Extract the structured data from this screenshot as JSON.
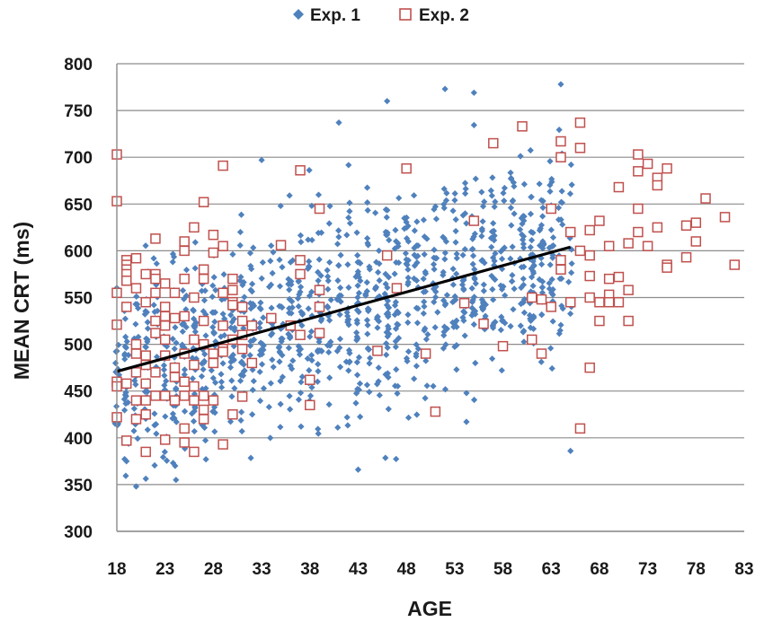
{
  "chart_data": {
    "type": "scatter",
    "title": "",
    "xlabel": "AGE",
    "ylabel": "MEAN CRT (ms)",
    "xlim": [
      18,
      83
    ],
    "ylim": [
      300,
      800
    ],
    "xticks": [
      18,
      23,
      28,
      33,
      38,
      43,
      48,
      53,
      58,
      63,
      68,
      73,
      78,
      83
    ],
    "yticks": [
      300,
      350,
      400,
      450,
      500,
      550,
      600,
      650,
      700,
      750,
      800
    ],
    "grid": "horizontal",
    "legend_position": "top-center",
    "series": [
      {
        "name": "Exp. 1",
        "marker": "diamond-filled",
        "color": "#4F81BD",
        "generated": {
          "x_min": 18,
          "x_max": 65,
          "count": 1150,
          "trend_intercept": 471,
          "trend_slope": 2.83,
          "spread": 55
        },
        "points": [
          [
            20,
            348
          ],
          [
            43,
            366
          ],
          [
            52,
            773
          ],
          [
            55,
            769
          ],
          [
            64,
            778
          ],
          [
            46,
            760
          ],
          [
            41,
            737
          ],
          [
            33,
            697
          ],
          [
            19,
            375
          ],
          [
            65,
            386
          ]
        ]
      },
      {
        "name": "Exp. 2",
        "marker": "square-open",
        "color": "#C0504D",
        "points": [
          [
            18,
            703
          ],
          [
            18,
            653
          ],
          [
            18,
            555
          ],
          [
            18,
            521
          ],
          [
            18,
            460
          ],
          [
            18,
            455
          ],
          [
            18,
            422
          ],
          [
            19,
            590
          ],
          [
            19,
            585
          ],
          [
            19,
            580
          ],
          [
            19,
            575
          ],
          [
            19,
            568
          ],
          [
            19,
            540
          ],
          [
            19,
            458
          ],
          [
            19,
            397
          ],
          [
            20,
            592
          ],
          [
            20,
            560
          ],
          [
            20,
            500
          ],
          [
            20,
            490
          ],
          [
            20,
            470
          ],
          [
            20,
            440
          ],
          [
            20,
            420
          ],
          [
            21,
            575
          ],
          [
            21,
            545
          ],
          [
            21,
            488
          ],
          [
            21,
            478
          ],
          [
            21,
            458
          ],
          [
            21,
            440
          ],
          [
            21,
            425
          ],
          [
            21,
            385
          ],
          [
            22,
            613
          ],
          [
            22,
            575
          ],
          [
            22,
            570
          ],
          [
            22,
            555
          ],
          [
            22,
            525
          ],
          [
            22,
            512
          ],
          [
            22,
            470
          ],
          [
            22,
            445
          ],
          [
            23,
            565
          ],
          [
            23,
            540
          ],
          [
            23,
            530
          ],
          [
            23,
            520
          ],
          [
            23,
            505
          ],
          [
            23,
            488
          ],
          [
            23,
            445
          ],
          [
            23,
            398
          ],
          [
            24,
            555
          ],
          [
            24,
            528
          ],
          [
            24,
            475
          ],
          [
            24,
            465
          ],
          [
            24,
            440
          ],
          [
            25,
            610
          ],
          [
            25,
            600
          ],
          [
            25,
            570
          ],
          [
            25,
            530
          ],
          [
            25,
            490
          ],
          [
            25,
            460
          ],
          [
            25,
            445
          ],
          [
            25,
            410
          ],
          [
            25,
            395
          ],
          [
            26,
            625
          ],
          [
            26,
            550
          ],
          [
            26,
            505
          ],
          [
            26,
            478
          ],
          [
            26,
            455
          ],
          [
            26,
            440
          ],
          [
            26,
            385
          ],
          [
            27,
            652
          ],
          [
            27,
            580
          ],
          [
            27,
            570
          ],
          [
            27,
            525
          ],
          [
            27,
            500
          ],
          [
            27,
            445
          ],
          [
            27,
            430
          ],
          [
            27,
            420
          ],
          [
            28,
            617
          ],
          [
            28,
            598
          ],
          [
            28,
            490
          ],
          [
            28,
            480
          ],
          [
            28,
            440
          ],
          [
            29,
            691
          ],
          [
            29,
            605
          ],
          [
            29,
            555
          ],
          [
            29,
            520
          ],
          [
            29,
            495
          ],
          [
            29,
            492
          ],
          [
            29,
            393
          ],
          [
            30,
            570
          ],
          [
            30,
            558
          ],
          [
            30,
            545
          ],
          [
            30,
            542
          ],
          [
            30,
            505
          ],
          [
            30,
            425
          ],
          [
            31,
            540
          ],
          [
            31,
            525
          ],
          [
            31,
            510
          ],
          [
            31,
            495
          ],
          [
            31,
            444
          ],
          [
            32,
            520
          ],
          [
            32,
            480
          ],
          [
            34,
            528
          ],
          [
            35,
            606
          ],
          [
            36,
            520
          ],
          [
            37,
            686
          ],
          [
            37,
            590
          ],
          [
            37,
            575
          ],
          [
            37,
            510
          ],
          [
            38,
            462
          ],
          [
            38,
            435
          ],
          [
            39,
            645
          ],
          [
            39,
            558
          ],
          [
            39,
            540
          ],
          [
            39,
            512
          ],
          [
            45,
            493
          ],
          [
            46,
            595
          ],
          [
            47,
            560
          ],
          [
            48,
            688
          ],
          [
            50,
            490
          ],
          [
            51,
            428
          ],
          [
            54,
            544
          ],
          [
            55,
            632
          ],
          [
            56,
            522
          ],
          [
            57,
            715
          ],
          [
            58,
            498
          ],
          [
            60,
            733
          ],
          [
            61,
            550
          ],
          [
            61,
            505
          ],
          [
            62,
            548
          ],
          [
            62,
            490
          ],
          [
            63,
            645
          ],
          [
            63,
            540
          ],
          [
            64,
            717
          ],
          [
            64,
            700
          ],
          [
            64,
            590
          ],
          [
            64,
            580
          ],
          [
            65,
            620
          ],
          [
            65,
            545
          ],
          [
            66,
            737
          ],
          [
            66,
            710
          ],
          [
            66,
            600
          ],
          [
            66,
            410
          ],
          [
            67,
            622
          ],
          [
            67,
            595
          ],
          [
            67,
            573
          ],
          [
            67,
            550
          ],
          [
            67,
            475
          ],
          [
            68,
            632
          ],
          [
            68,
            545
          ],
          [
            68,
            525
          ],
          [
            69,
            605
          ],
          [
            69,
            570
          ],
          [
            69,
            553
          ],
          [
            69,
            545
          ],
          [
            70,
            668
          ],
          [
            70,
            572
          ],
          [
            70,
            545
          ],
          [
            71,
            608
          ],
          [
            71,
            558
          ],
          [
            71,
            525
          ],
          [
            72,
            703
          ],
          [
            72,
            685
          ],
          [
            72,
            645
          ],
          [
            72,
            620
          ],
          [
            73,
            693
          ],
          [
            73,
            605
          ],
          [
            74,
            678
          ],
          [
            74,
            670
          ],
          [
            74,
            625
          ],
          [
            75,
            688
          ],
          [
            75,
            585
          ],
          [
            75,
            582
          ],
          [
            77,
            627
          ],
          [
            77,
            593
          ],
          [
            78,
            630
          ],
          [
            78,
            610
          ],
          [
            79,
            656
          ],
          [
            81,
            636
          ],
          [
            82,
            585
          ]
        ]
      }
    ],
    "trendline": {
      "label": "linear fit",
      "x": [
        18,
        65
      ],
      "y": [
        471,
        604
      ],
      "color": "#000000"
    }
  }
}
